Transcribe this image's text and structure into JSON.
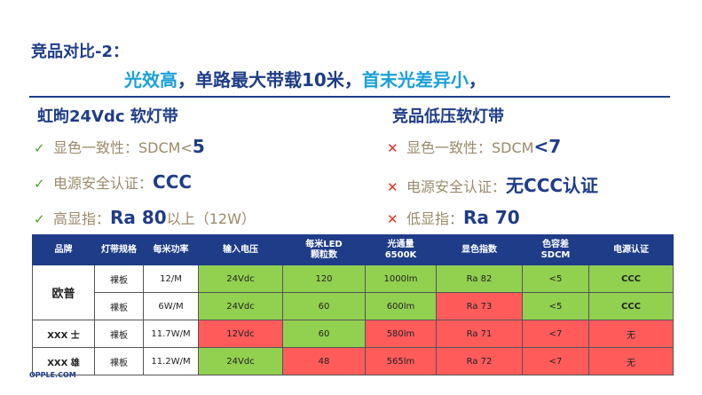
{
  "title": "竞品对比-2：",
  "subtitle": {
    "part1": "光效高",
    "part2": "，单路最大带载10米，",
    "part3": "首末光差异小",
    "part4": "，"
  },
  "left": {
    "heading": "虹昫24Vdc 软灯带",
    "mark": "✓",
    "items": [
      {
        "label": "显色一致性：SDCM<",
        "value": "5",
        "suffix": ""
      },
      {
        "label": "电源安全认证：",
        "value": "CCC",
        "suffix": ""
      },
      {
        "label": "高显指：",
        "value": "Ra 80",
        "suffix": "以上（12W）"
      }
    ]
  },
  "right": {
    "heading": "竞品低压软灯带",
    "mark": "✕",
    "items": [
      {
        "label": "显色一致性：SDCM",
        "value": "<7",
        "suffix": ""
      },
      {
        "label": "电源安全认证：",
        "value": "无CCC认证",
        "suffix": ""
      },
      {
        "label": "低显指：",
        "value": "Ra 70",
        "suffix": ""
      }
    ]
  },
  "table": {
    "headers": [
      "品牌",
      "灯带规格",
      "每米功率",
      "输入电压",
      "每米LED\n颗粒数",
      "光通量\n6500K",
      "显色指数",
      "色容差\nSDCM",
      "电源认证"
    ],
    "rows": [
      {
        "brand": "欧普",
        "spec": "裸板",
        "power": "12/M",
        "voltage": "24Vdc",
        "led": "120",
        "lumen": "1000lm",
        "cri": "Ra 82",
        "sdcm": "<5",
        "cert": "CCC"
      },
      {
        "brand": "",
        "spec": "裸板",
        "power": "6W/M",
        "voltage": "24Vdc",
        "led": "60",
        "lumen": "600lm",
        "cri": "Ra 73",
        "sdcm": "<5",
        "cert": "CCC"
      },
      {
        "brand": "XXX 士",
        "spec": "裸板",
        "power": "11.7W/M",
        "voltage": "12Vdc",
        "led": "60",
        "lumen": "580lm",
        "cri": "Ra 71",
        "sdcm": "<7",
        "cert": "无"
      },
      {
        "brand": "XXX 雄",
        "spec": "裸板",
        "power": "11.2W/M",
        "voltage": "24Vdc",
        "led": "48",
        "lumen": "565lm",
        "cri": "Ra 72",
        "sdcm": "<7",
        "cert": "无"
      }
    ]
  },
  "footer": "OPPLE.COM",
  "colors": {
    "navy": "#1f3c88",
    "cyan": "#1aa0d8",
    "green": "#92d050",
    "red": "#ff5b5b",
    "check": "#4aa329",
    "cross": "#e0302a"
  }
}
